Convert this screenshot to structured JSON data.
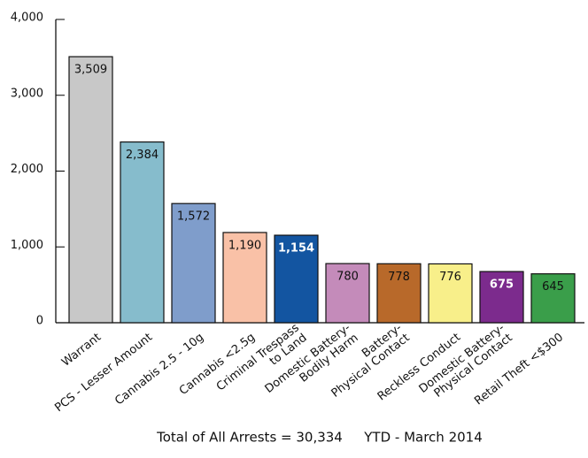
{
  "chart_data": {
    "type": "bar",
    "categories": [
      "Warrant",
      "PCS - Lesser Amount",
      "Cannabis 2.5 - 10g",
      "Cannabis <2.5g",
      "Criminal Trespass\nto Land",
      "Domestic Battery-\nBodily Harm",
      "Battery-\nPhysical Contact",
      "Reckless Conduct",
      "Domestic Battery-\nPhysical Contact",
      "Retail Theft <$300"
    ],
    "values": [
      3509,
      2384,
      1572,
      1190,
      1154,
      780,
      778,
      776,
      675,
      645
    ],
    "value_labels": [
      "3,509",
      "2,384",
      "1,572",
      "1,190",
      "1,154",
      "780",
      "778",
      "776",
      "675",
      "645"
    ],
    "colors": [
      "#c8c8c8",
      "#86bccc",
      "#7f9dcb",
      "#f9c1a7",
      "#1355a1",
      "#c48bba",
      "#b8692a",
      "#f8ef8a",
      "#7c2b8d",
      "#3a9e4a"
    ],
    "ylim": [
      0,
      4000
    ],
    "yticks": [
      0,
      {
        "value": 1000,
        "label": "1,000"
      },
      {
        "value": 2000,
        "label": "2,000"
      },
      {
        "value": 3000,
        "label": "3,000"
      },
      {
        "value": 4000,
        "label": "4,000"
      }
    ],
    "footer": [
      "Total of All Arrests =  30,334",
      "YTD - March 2014"
    ]
  }
}
